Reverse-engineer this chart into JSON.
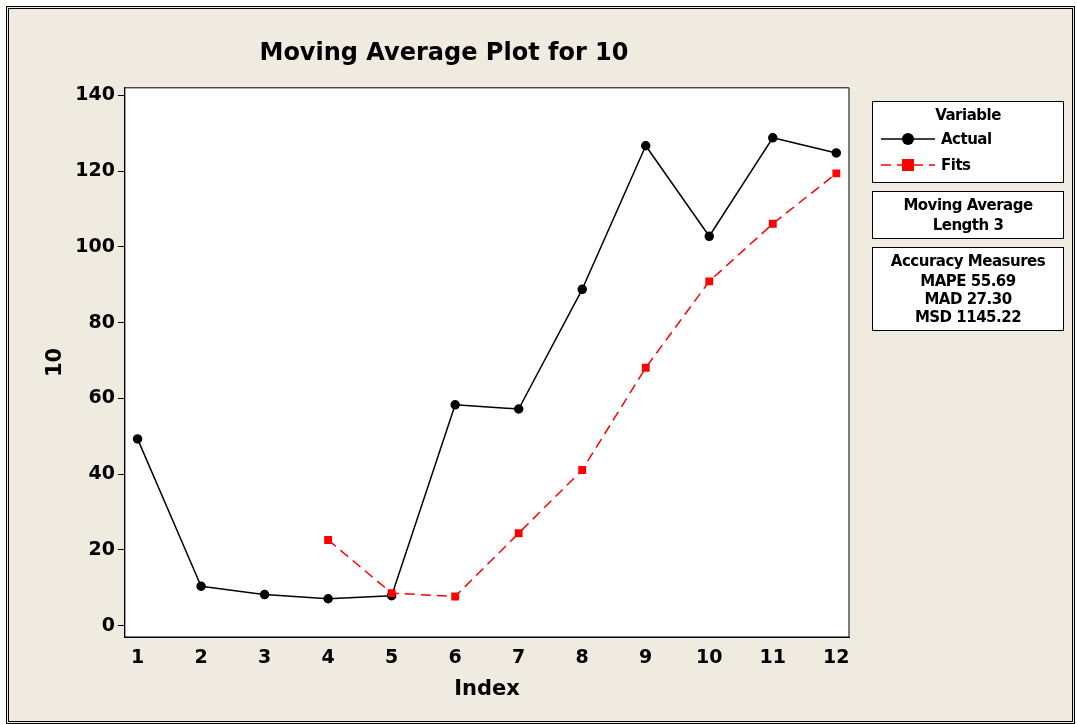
{
  "chart_data": {
    "type": "line",
    "title": "Moving Average Plot for 10",
    "xlabel": "Index",
    "ylabel": "10",
    "legend_title": "Variable",
    "x": [
      1,
      2,
      3,
      4,
      5,
      6,
      7,
      8,
      9,
      10,
      11,
      12
    ],
    "series": [
      {
        "name": "Actual",
        "color": "#000000",
        "marker": "circle",
        "line_style": "solid",
        "values": [
          49.3,
          10.4,
          8.2,
          7.1,
          7.9,
          58.3,
          57.2,
          88.8,
          126.7,
          102.8,
          128.8,
          124.8
        ]
      },
      {
        "name": "Fits",
        "color": "#ff0000",
        "marker": "square",
        "line_style": "dashed",
        "values": [
          null,
          null,
          null,
          22.6,
          8.6,
          7.7,
          24.4,
          41.1,
          68.1,
          90.9,
          106.1,
          119.4
        ]
      }
    ],
    "xlim": [
      0.8,
      12.2
    ],
    "xticks": [
      1,
      2,
      3,
      4,
      5,
      6,
      7,
      8,
      9,
      10,
      11,
      12
    ],
    "ylim": [
      -3,
      142
    ],
    "yticks": [
      0,
      20,
      40,
      60,
      80,
      100,
      120,
      140
    ],
    "grid": false,
    "legend": "right",
    "annotations": [
      "Moving Average",
      "Length 3",
      "Accuracy Measures",
      "MAPE 55.69",
      "MAD 27.30",
      "MSD 1145.22"
    ]
  }
}
